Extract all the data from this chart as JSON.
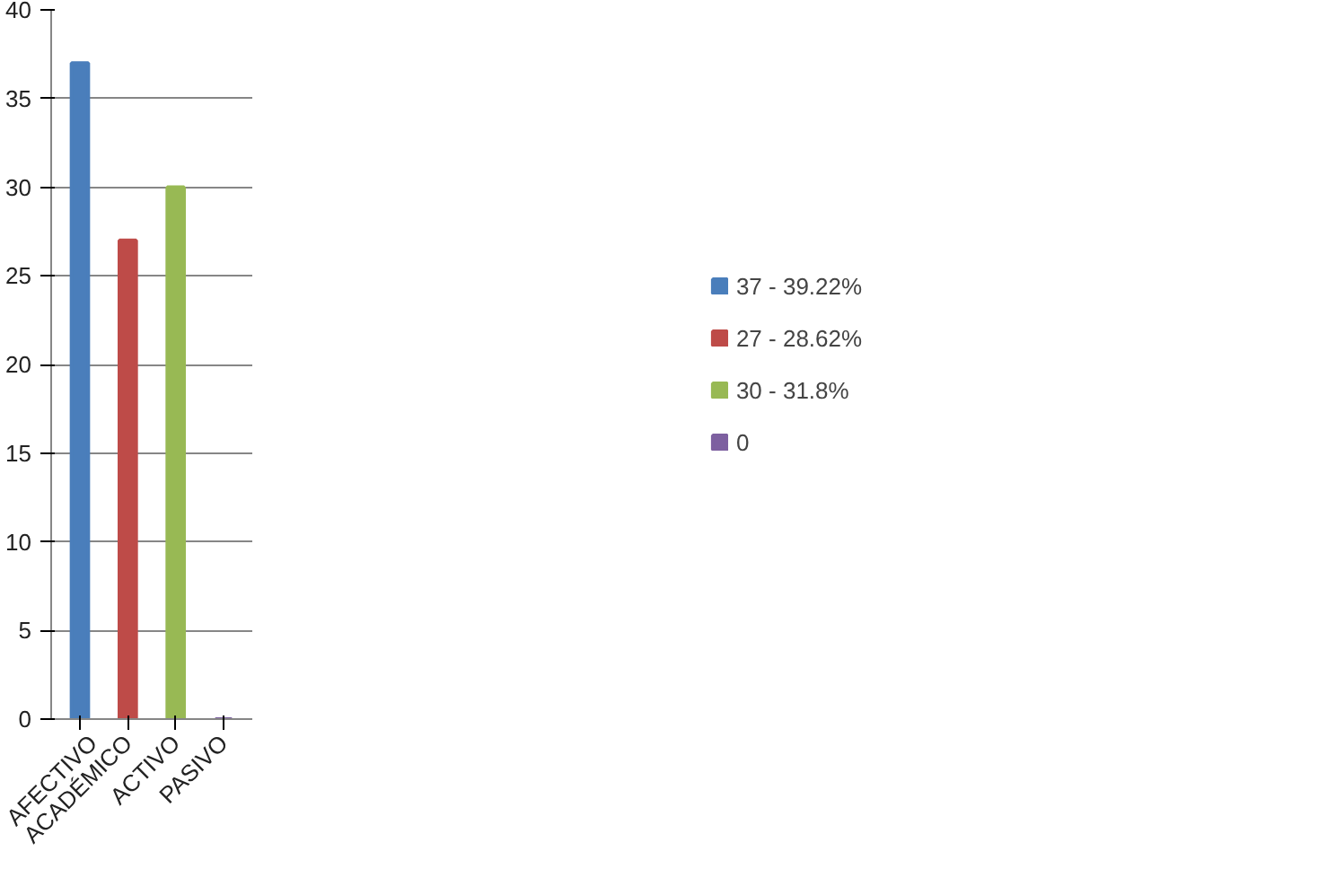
{
  "chart_data": {
    "type": "bar",
    "categories": [
      "AFECTIVO",
      "ACADÉMICO",
      "ACTIVO",
      "PASIVO"
    ],
    "series": [
      {
        "name": "37 - 39.22%",
        "color": "#4a7ebb",
        "values": [
          37,
          null,
          null,
          null
        ]
      },
      {
        "name": "27 - 28.62%",
        "color": "#be4b48",
        "values": [
          null,
          27,
          null,
          null
        ]
      },
      {
        "name": "30 - 31.8%",
        "color": "#98b954",
        "values": [
          null,
          null,
          30,
          null
        ]
      },
      {
        "name": "0",
        "color": "#7d60a0",
        "values": [
          null,
          null,
          null,
          0
        ]
      }
    ],
    "ylim": [
      0,
      40
    ],
    "yticks": [
      0,
      5,
      10,
      15,
      20,
      25,
      30,
      35,
      40
    ],
    "grid": "y",
    "legend": "right"
  }
}
